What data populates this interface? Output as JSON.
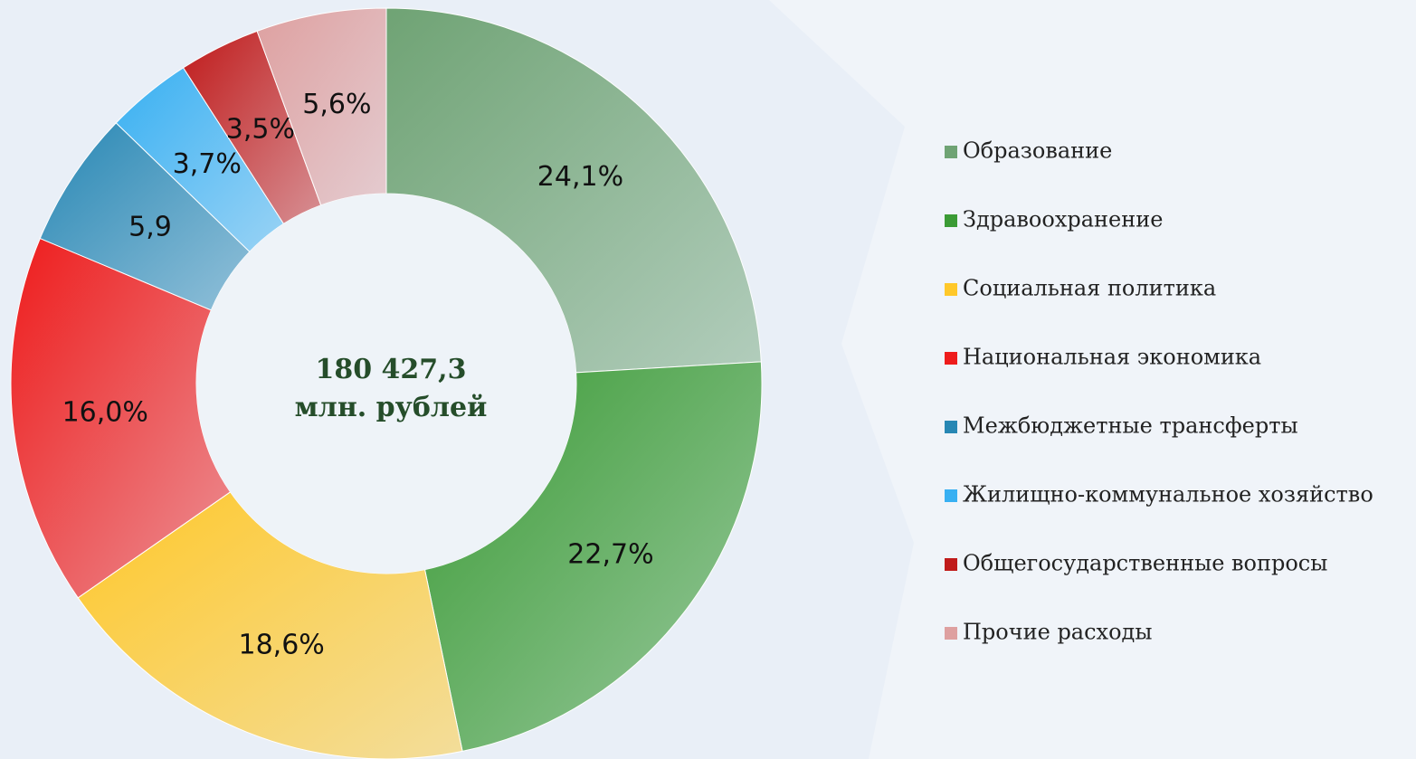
{
  "chart_data": {
    "type": "donut",
    "center_label": [
      "180 427,3",
      "млн. рублей"
    ],
    "categories": [
      "Образование",
      "Здравоохранение",
      "Социальная политика",
      "Национальная экономика",
      "Межбюджетные трансферты",
      "Жилищно-коммунальное хозяйство",
      "Общегосударственные вопросы",
      "Прочие расходы"
    ],
    "values": [
      24.1,
      22.7,
      18.6,
      16.0,
      5.9,
      3.7,
      3.5,
      5.6
    ],
    "value_labels": [
      "24,1%",
      "22,7%",
      "18,6%",
      "16,0%",
      "5,9",
      "3,7%",
      "3,5%",
      "5,6%"
    ],
    "colors": [
      "#6fa374",
      "#3b9b35",
      "#ffc82a",
      "#ee1c1c",
      "#2787b4",
      "#38b0f2",
      "#c01b1b",
      "#dea0a0"
    ],
    "legend": "right"
  }
}
